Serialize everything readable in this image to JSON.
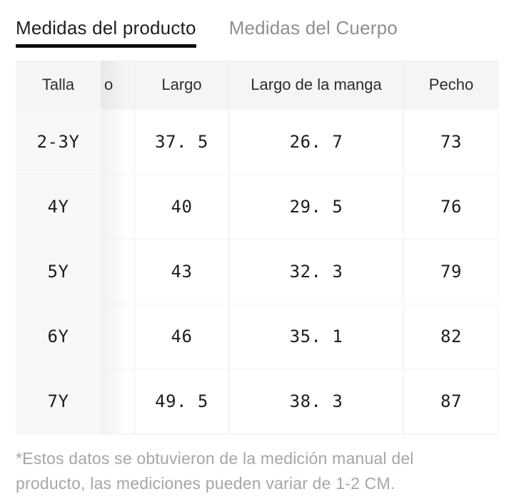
{
  "tabs": [
    {
      "label": "Medidas del producto",
      "active": true
    },
    {
      "label": "Medidas del Cuerpo",
      "active": false
    }
  ],
  "table": {
    "columns": {
      "size": "Talla",
      "largo": "Largo",
      "manga": "Largo de la manga",
      "pecho": "Pecho"
    },
    "hidden_column_fragment": "o",
    "rows": [
      {
        "size": "2-3Y",
        "largo": "37. 5",
        "manga": "26. 7",
        "pecho": "73"
      },
      {
        "size": "4Y",
        "largo": "40",
        "manga": "29. 5",
        "pecho": "76"
      },
      {
        "size": "5Y",
        "largo": "43",
        "manga": "32. 3",
        "pecho": "79"
      },
      {
        "size": "6Y",
        "largo": "46",
        "manga": "35. 1",
        "pecho": "82"
      },
      {
        "size": "7Y",
        "largo": "49. 5",
        "manga": "38. 3",
        "pecho": "87"
      }
    ]
  },
  "footnote": {
    "line1": "*Estos datos se obtuvieron de la medición manual del",
    "line2": "producto,  las mediciones pueden variar de 1-2 CM."
  },
  "colors": {
    "tab_active_text": "#1f1f1f",
    "tab_inactive_text": "#8f8f8f",
    "tab_underline": "#0f0f0f",
    "header_row_bg": "#f5f5f6",
    "sticky_column_bg": "#f8f8f8",
    "grid_line": "#ececec",
    "footnote_text": "#a6a6a6"
  }
}
